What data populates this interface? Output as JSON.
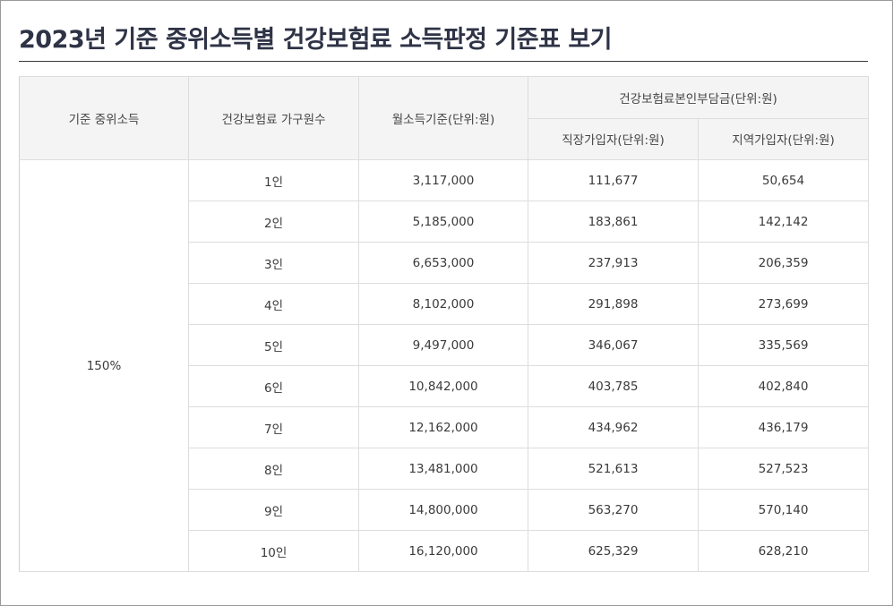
{
  "page": {
    "title": "2023년 기준 중위소득별 건강보험료 소득판정 기준표 보기"
  },
  "table": {
    "headers": {
      "median_income": "기준 중위소득",
      "household_size": "건강보험료 가구원수",
      "monthly_income": "월소득기준(단위:원)",
      "premium_group": "건강보험료본인부담금(단위:원)",
      "employee": "직장가입자(단위:원)",
      "regional": "지역가입자(단위:원)"
    },
    "median_value": "150%",
    "rows": [
      {
        "size": "1인",
        "income": "3,117,000",
        "employee": "111,677",
        "regional": "50,654"
      },
      {
        "size": "2인",
        "income": "5,185,000",
        "employee": "183,861",
        "regional": "142,142"
      },
      {
        "size": "3인",
        "income": "6,653,000",
        "employee": "237,913",
        "regional": "206,359"
      },
      {
        "size": "4인",
        "income": "8,102,000",
        "employee": "291,898",
        "regional": "273,699"
      },
      {
        "size": "5인",
        "income": "9,497,000",
        "employee": "346,067",
        "regional": "335,569"
      },
      {
        "size": "6인",
        "income": "10,842,000",
        "employee": "403,785",
        "regional": "402,840"
      },
      {
        "size": "7인",
        "income": "12,162,000",
        "employee": "434,962",
        "regional": "436,179"
      },
      {
        "size": "8인",
        "income": "13,481,000",
        "employee": "521,613",
        "regional": "527,523"
      },
      {
        "size": "9인",
        "income": "14,800,000",
        "employee": "563,270",
        "regional": "570,140"
      },
      {
        "size": "10인",
        "income": "16,120,000",
        "employee": "625,329",
        "regional": "628,210"
      }
    ]
  }
}
